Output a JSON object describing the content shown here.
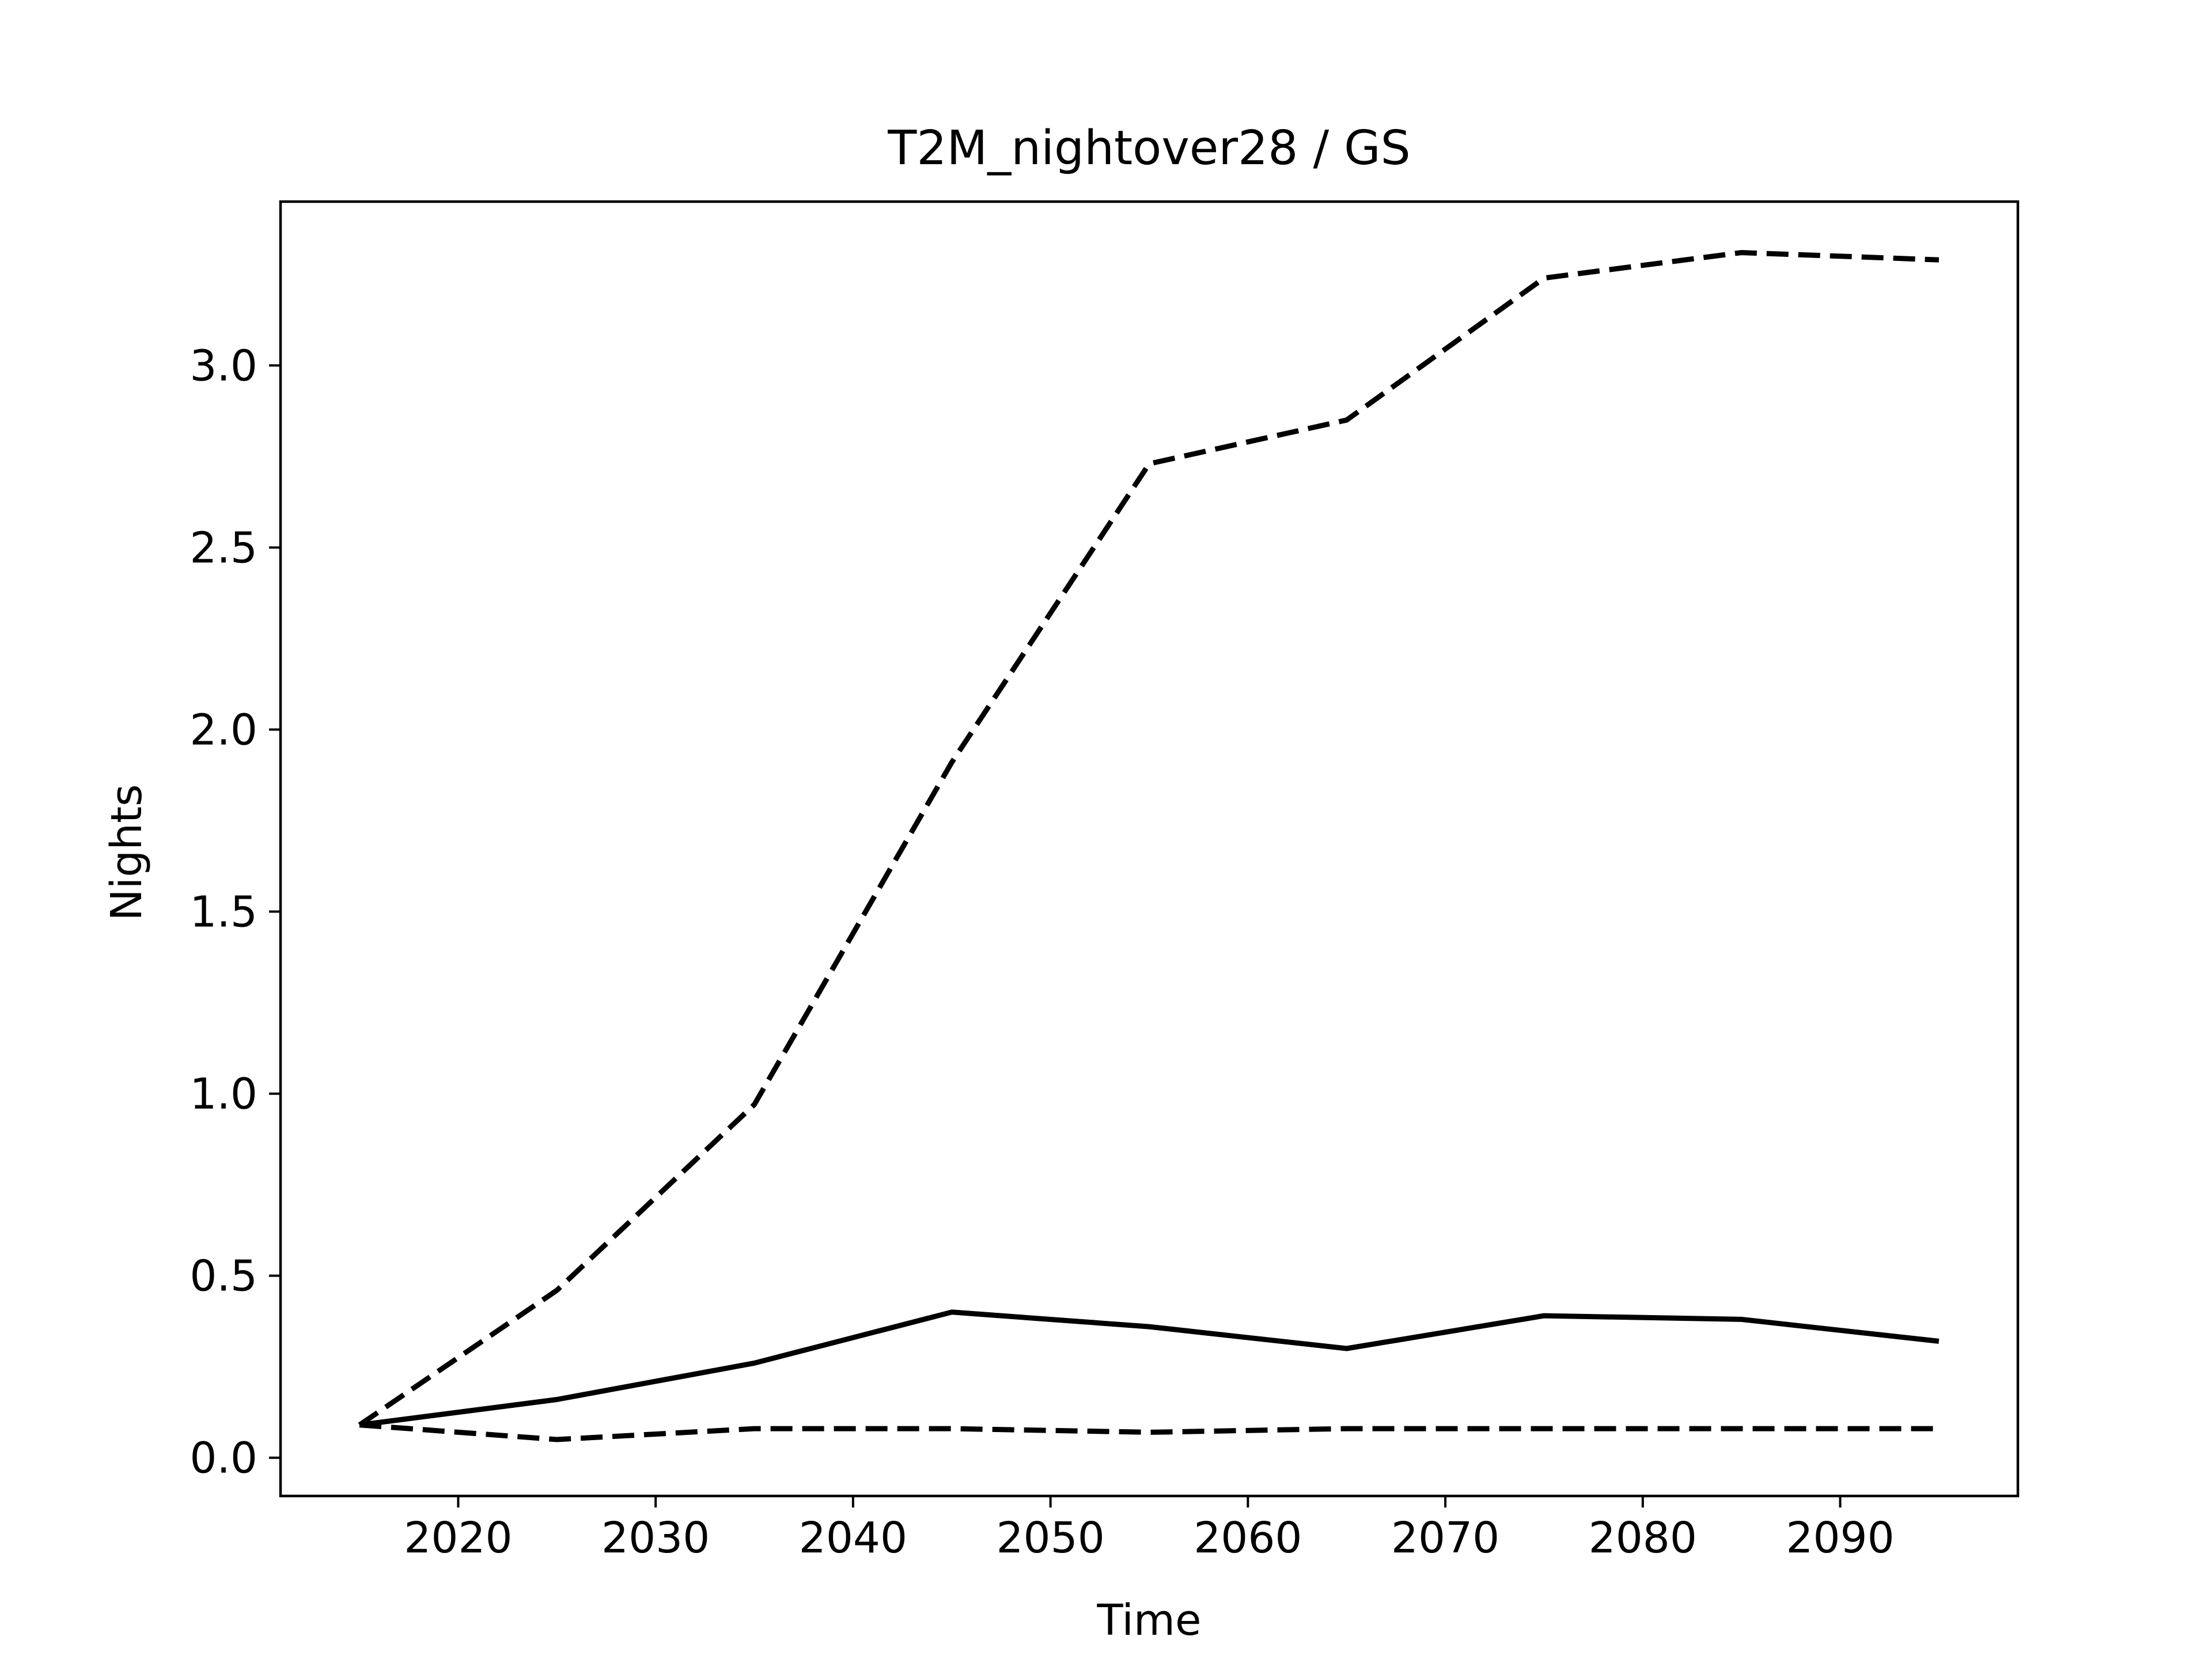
{
  "chart_data": {
    "type": "line",
    "title": "T2M_nightover28 / GS",
    "xlabel": "Time",
    "ylabel": "Nights",
    "x": [
      2015,
      2025,
      2035,
      2045,
      2055,
      2065,
      2075,
      2085,
      2095
    ],
    "xlim": [
      2011,
      2099
    ],
    "ylim": [
      -0.105,
      3.45
    ],
    "xticks": [
      2020,
      2030,
      2040,
      2050,
      2060,
      2070,
      2080,
      2090
    ],
    "xtick_labels": [
      "2020",
      "2030",
      "2040",
      "2050",
      "2060",
      "2070",
      "2080",
      "2090"
    ],
    "yticks": [
      0.0,
      0.5,
      1.0,
      1.5,
      2.0,
      2.5,
      3.0
    ],
    "ytick_labels": [
      "0.0",
      "0.5",
      "1.0",
      "1.5",
      "2.0",
      "2.5",
      "3.0"
    ],
    "grid": false,
    "legend": "none",
    "series": [
      {
        "style": "dashed",
        "color": "#000000",
        "values": [
          0.09,
          0.46,
          0.97,
          1.91,
          2.73,
          2.85,
          3.24,
          3.31,
          3.29
        ]
      },
      {
        "style": "solid",
        "color": "#000000",
        "values": [
          0.09,
          0.16,
          0.26,
          0.4,
          0.36,
          0.3,
          0.39,
          0.38,
          0.32
        ]
      },
      {
        "style": "dashed",
        "color": "#000000",
        "values": [
          0.09,
          0.05,
          0.08,
          0.08,
          0.07,
          0.08,
          0.08,
          0.08,
          0.08
        ]
      }
    ]
  }
}
